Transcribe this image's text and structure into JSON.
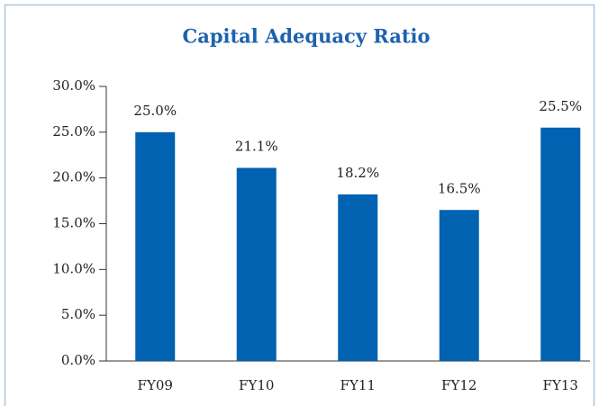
{
  "chart_data": {
    "type": "bar",
    "title": "Capital Adequacy Ratio",
    "categories": [
      "FY09",
      "FY10",
      "FY11",
      "FY12",
      "FY13"
    ],
    "values": [
      25.0,
      21.1,
      18.2,
      16.5,
      25.5
    ],
    "value_labels": [
      "25.0%",
      "21.1%",
      "18.2%",
      "16.5%",
      "25.5%"
    ],
    "color": "#0062b1",
    "ylim": [
      0,
      30
    ],
    "yticks": [
      {
        "value": 0,
        "label": "0.0%"
      },
      {
        "value": 5,
        "label": "5.0%"
      },
      {
        "value": 10,
        "label": "10.0%"
      },
      {
        "value": 15,
        "label": "15.0%"
      },
      {
        "value": 20,
        "label": "20.0%"
      },
      {
        "value": 25,
        "label": "25.0%"
      },
      {
        "value": 30,
        "label": "30.0%"
      }
    ],
    "grid": false
  }
}
